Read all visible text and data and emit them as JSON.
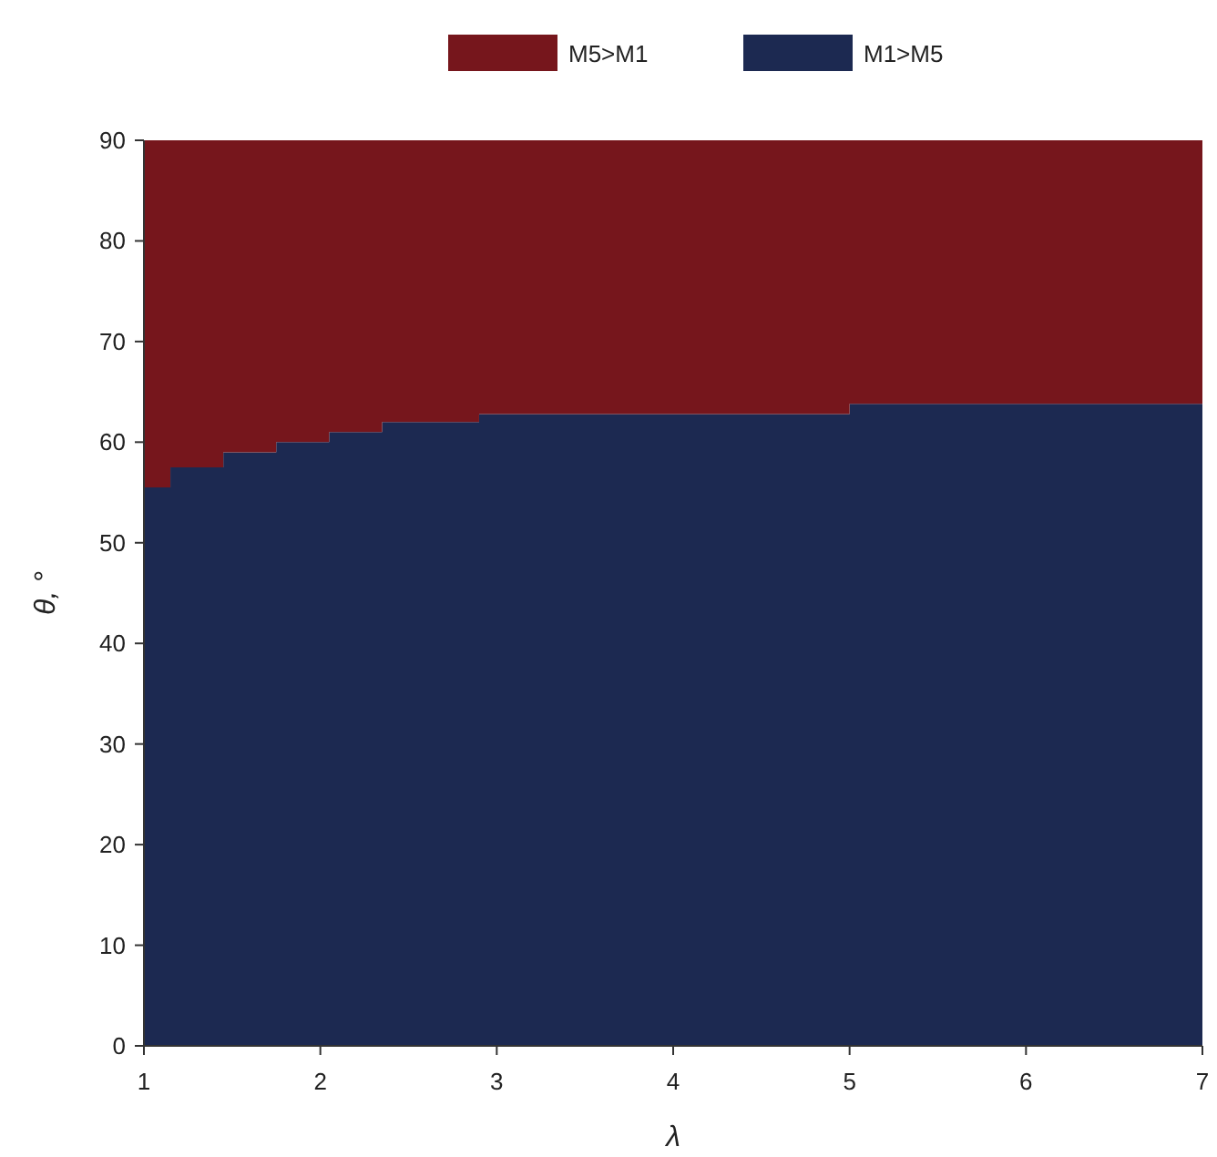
{
  "chart_data": {
    "type": "area",
    "stacked": true,
    "xlabel": "λ",
    "ylabel": "θ, °",
    "x": [
      1,
      1.15,
      1.45,
      1.75,
      2.05,
      2.35,
      2.9,
      5,
      7
    ],
    "series": [
      {
        "name": "M1>M5",
        "color": "#1c2951",
        "values": [
          55.5,
          57.5,
          59,
          60,
          61,
          62,
          62.8,
          63.8,
          63.8
        ]
      },
      {
        "name": "M5>M1",
        "color": "#76161c",
        "values": [
          34.5,
          32.5,
          31,
          30,
          29,
          28,
          27.2,
          26.2,
          26.2
        ]
      }
    ],
    "xlim": [
      1,
      7
    ],
    "xticks": [
      1,
      2,
      3,
      4,
      5,
      6,
      7
    ],
    "ylim": [
      0,
      90
    ],
    "yticks": [
      0,
      10,
      20,
      30,
      40,
      50,
      60,
      70,
      80,
      90
    ],
    "legend": "top",
    "grid": false
  }
}
